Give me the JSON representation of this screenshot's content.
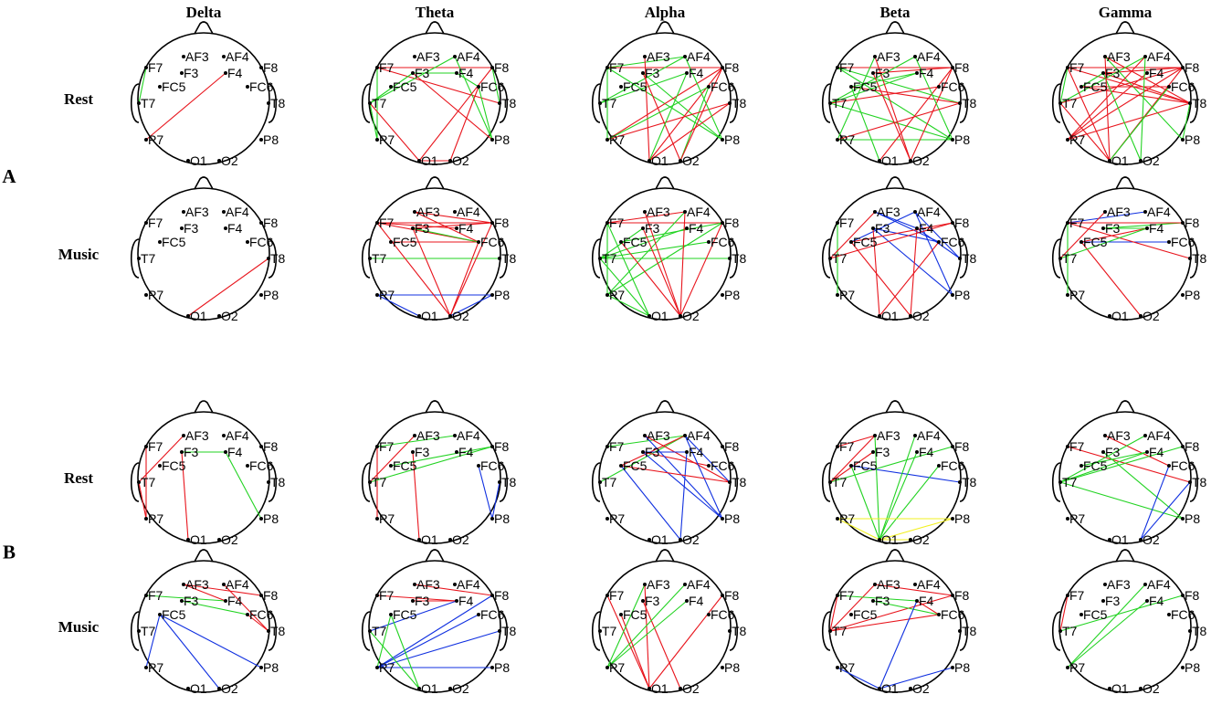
{
  "bands": [
    "Delta",
    "Theta",
    "Alpha",
    "Beta",
    "Gamma"
  ],
  "panels": [
    {
      "label": "A",
      "conditions": [
        "Rest",
        "Music"
      ]
    },
    {
      "label": "B",
      "conditions": [
        "Rest",
        "Music"
      ]
    }
  ],
  "electrodes": [
    "AF3",
    "AF4",
    "F7",
    "F3",
    "F4",
    "F8",
    "FC5",
    "FC6",
    "T7",
    "T8",
    "P7",
    "P8",
    "O1",
    "O2"
  ],
  "colors": {
    "red": "#e8141c",
    "green": "#22d322",
    "blue": "#1030e0",
    "yellow": "#f2f020",
    "outline": "#000000"
  },
  "connectivity": [
    [
      [
        [
          "F7",
          "T7",
          "g"
        ],
        [
          "F4",
          "P7",
          "r"
        ]
      ],
      [
        [
          "F7",
          "F8",
          "r"
        ],
        [
          "F3",
          "F4",
          "g"
        ],
        [
          "F7",
          "T8",
          "r"
        ],
        [
          "F7",
          "P7",
          "g"
        ],
        [
          "T7",
          "F3",
          "g"
        ],
        [
          "T7",
          "AF4",
          "g"
        ],
        [
          "T7",
          "P7",
          "g"
        ],
        [
          "F3",
          "P8",
          "r"
        ],
        [
          "AF4",
          "P8",
          "g"
        ],
        [
          "F8",
          "T8",
          "g"
        ],
        [
          "F8",
          "O1",
          "r"
        ],
        [
          "FC6",
          "O2",
          "r"
        ],
        [
          "O1",
          "O2",
          "r"
        ],
        [
          "T7",
          "O1",
          "r"
        ],
        [
          "F4",
          "FC6",
          "g"
        ],
        [
          "FC6",
          "P8",
          "g"
        ]
      ],
      [
        [
          "F7",
          "AF4",
          "g"
        ],
        [
          "F7",
          "F8",
          "r"
        ],
        [
          "F7",
          "P7",
          "g"
        ],
        [
          "F7",
          "P8",
          "g"
        ],
        [
          "T7",
          "F4",
          "g"
        ],
        [
          "T7",
          "AF4",
          "g"
        ],
        [
          "F3",
          "O2",
          "r"
        ],
        [
          "F3",
          "P8",
          "g"
        ],
        [
          "AF3",
          "O1",
          "r"
        ],
        [
          "F8",
          "P7",
          "r"
        ],
        [
          "F8",
          "O1",
          "r"
        ],
        [
          "FC6",
          "O2",
          "g"
        ],
        [
          "T8",
          "P7",
          "r"
        ],
        [
          "T8",
          "O1",
          "r"
        ],
        [
          "F8",
          "O2",
          "r"
        ],
        [
          "P7",
          "FC6",
          "g"
        ],
        [
          "AF4",
          "P8",
          "g"
        ],
        [
          "O1",
          "F4",
          "g"
        ]
      ],
      [
        [
          "F7",
          "F8",
          "r"
        ],
        [
          "F7",
          "T8",
          "g"
        ],
        [
          "F7",
          "P8",
          "g"
        ],
        [
          "F3",
          "F8",
          "r"
        ],
        [
          "FC5",
          "T8",
          "r"
        ],
        [
          "T7",
          "AF4",
          "g"
        ],
        [
          "T7",
          "F4",
          "g"
        ],
        [
          "T7",
          "P8",
          "g"
        ],
        [
          "P7",
          "P8",
          "g"
        ],
        [
          "P7",
          "AF3",
          "g"
        ],
        [
          "F3",
          "O2",
          "r"
        ],
        [
          "AF3",
          "O2",
          "r"
        ],
        [
          "FC5",
          "O1",
          "g"
        ],
        [
          "F8",
          "O1",
          "r"
        ],
        [
          "F8",
          "O2",
          "r"
        ],
        [
          "FC6",
          "T7",
          "r"
        ],
        [
          "AF4",
          "P8",
          "g"
        ],
        [
          "T8",
          "P7",
          "r"
        ],
        [
          "F4",
          "FC5",
          "g"
        ]
      ],
      [
        [
          "F7",
          "F8",
          "r"
        ],
        [
          "F7",
          "T8",
          "r"
        ],
        [
          "F3",
          "T8",
          "r"
        ],
        [
          "F3",
          "F8",
          "r"
        ],
        [
          "AF3",
          "T8",
          "r"
        ],
        [
          "AF3",
          "P8",
          "g"
        ],
        [
          "FC5",
          "T8",
          "r"
        ],
        [
          "FC5",
          "FC6",
          "r"
        ],
        [
          "T7",
          "AF4",
          "g"
        ],
        [
          "T7",
          "F8",
          "r"
        ],
        [
          "T7",
          "O1",
          "r"
        ],
        [
          "P7",
          "F8",
          "r"
        ],
        [
          "P7",
          "AF4",
          "r"
        ],
        [
          "P7",
          "T8",
          "r"
        ],
        [
          "F7",
          "O1",
          "r"
        ],
        [
          "F3",
          "O2",
          "g"
        ],
        [
          "AF3",
          "O1",
          "r"
        ],
        [
          "F8",
          "O1",
          "r"
        ],
        [
          "FC6",
          "O1",
          "g"
        ],
        [
          "T8",
          "P8",
          "g"
        ],
        [
          "F4",
          "P7",
          "r"
        ],
        [
          "AF4",
          "O2",
          "g"
        ],
        [
          "F7",
          "T7",
          "g"
        ],
        [
          "F3",
          "FC5",
          "g"
        ]
      ]
    ],
    [
      [
        [
          "O1",
          "T8",
          "r"
        ]
      ],
      [
        [
          "F7",
          "F8",
          "r"
        ],
        [
          "AF3",
          "FC6",
          "r"
        ],
        [
          "F3",
          "F8",
          "r"
        ],
        [
          "F7",
          "FC6",
          "r"
        ],
        [
          "AF3",
          "F8",
          "r"
        ],
        [
          "F7",
          "F4",
          "r"
        ],
        [
          "FC5",
          "FC6",
          "r"
        ],
        [
          "F3",
          "FC6",
          "g"
        ],
        [
          "T7",
          "T8",
          "g"
        ],
        [
          "F8",
          "O2",
          "r"
        ],
        [
          "FC6",
          "O2",
          "r"
        ],
        [
          "P7",
          "P8",
          "b"
        ],
        [
          "P7",
          "O1",
          "b"
        ],
        [
          "O2",
          "P8",
          "b"
        ],
        [
          "F3",
          "O2",
          "r"
        ],
        [
          "F7",
          "O2",
          "r"
        ]
      ],
      [
        [
          "F7",
          "F8",
          "r"
        ],
        [
          "F7",
          "AF4",
          "r"
        ],
        [
          "T7",
          "T8",
          "g"
        ],
        [
          "T7",
          "FC6",
          "g"
        ],
        [
          "FC5",
          "F8",
          "g"
        ],
        [
          "T7",
          "F4",
          "g"
        ],
        [
          "P7",
          "F8",
          "g"
        ],
        [
          "P7",
          "AF4",
          "g"
        ],
        [
          "F7",
          "O1",
          "g"
        ],
        [
          "T7",
          "O1",
          "g"
        ],
        [
          "P7",
          "O1",
          "g"
        ],
        [
          "F7",
          "P7",
          "g"
        ],
        [
          "F3",
          "O2",
          "r"
        ],
        [
          "AF3",
          "O2",
          "r"
        ],
        [
          "F8",
          "O2",
          "r"
        ],
        [
          "AF4",
          "O2",
          "r"
        ],
        [
          "FC5",
          "O2",
          "r"
        ],
        [
          "T7",
          "F3",
          "g"
        ]
      ],
      [
        [
          "F7",
          "P7",
          "g"
        ],
        [
          "T7",
          "AF3",
          "r"
        ],
        [
          "F3",
          "FC6",
          "b"
        ],
        [
          "AF3",
          "FC6",
          "b"
        ],
        [
          "FC5",
          "AF4",
          "b"
        ],
        [
          "F3",
          "P8",
          "b"
        ],
        [
          "AF4",
          "T8",
          "b"
        ],
        [
          "AF4",
          "P8",
          "b"
        ],
        [
          "F4",
          "T8",
          "b"
        ],
        [
          "FC5",
          "F8",
          "r"
        ],
        [
          "T7",
          "F8",
          "r"
        ],
        [
          "F3",
          "O1",
          "r"
        ],
        [
          "F4",
          "O2",
          "r"
        ],
        [
          "FC6",
          "O1",
          "r"
        ],
        [
          "FC5",
          "O2",
          "r"
        ],
        [
          "AF3",
          "F4",
          "b"
        ]
      ],
      [
        [
          "F7",
          "AF4",
          "b"
        ],
        [
          "F3",
          "F8",
          "g"
        ],
        [
          "F3",
          "F4",
          "g"
        ],
        [
          "F7",
          "F8",
          "r"
        ],
        [
          "FC5",
          "FC6",
          "b"
        ],
        [
          "FC5",
          "F4",
          "r"
        ],
        [
          "F7",
          "T8",
          "r"
        ],
        [
          "FC5",
          "O2",
          "r"
        ],
        [
          "T7",
          "F4",
          "g"
        ],
        [
          "F7",
          "P7",
          "g"
        ],
        [
          "T7",
          "AF3",
          "r"
        ]
      ]
    ],
    [
      [
        [
          "F3",
          "F4",
          "g"
        ],
        [
          "F3",
          "O1",
          "r"
        ],
        [
          "F4",
          "P8",
          "g"
        ],
        [
          "AF3",
          "T7",
          "r"
        ],
        [
          "T7",
          "P7",
          "r"
        ],
        [
          "F7",
          "P7",
          "r"
        ]
      ],
      [
        [
          "F7",
          "P7",
          "r"
        ],
        [
          "AF3",
          "T7",
          "r"
        ],
        [
          "F3",
          "O1",
          "r"
        ],
        [
          "F7",
          "AF4",
          "g"
        ],
        [
          "T7",
          "F8",
          "g"
        ],
        [
          "FC5",
          "F8",
          "g"
        ],
        [
          "FC6",
          "P8",
          "b"
        ],
        [
          "T8",
          "P8",
          "b"
        ]
      ],
      [
        [
          "F7",
          "AF4",
          "g"
        ],
        [
          "T7",
          "AF4",
          "g"
        ],
        [
          "F3",
          "FC6",
          "r"
        ],
        [
          "AF3",
          "T8",
          "r"
        ],
        [
          "FC5",
          "AF4",
          "r"
        ],
        [
          "F3",
          "P8",
          "b"
        ],
        [
          "AF3",
          "P8",
          "b"
        ],
        [
          "AF4",
          "P8",
          "b"
        ],
        [
          "FC5",
          "O2",
          "b"
        ],
        [
          "F4",
          "O2",
          "b"
        ],
        [
          "AF4",
          "T8",
          "b"
        ],
        [
          "F3",
          "F4",
          "b"
        ],
        [
          "FC5",
          "T8",
          "r"
        ]
      ],
      [
        [
          "F7",
          "AF3",
          "r"
        ],
        [
          "T7",
          "AF3",
          "r"
        ],
        [
          "T7",
          "F3",
          "r"
        ],
        [
          "T7",
          "F8",
          "g"
        ],
        [
          "FC5",
          "T8",
          "b"
        ],
        [
          "FC5",
          "O1",
          "g"
        ],
        [
          "AF3",
          "O1",
          "g"
        ],
        [
          "AF4",
          "O1",
          "g"
        ],
        [
          "F4",
          "O1",
          "g"
        ],
        [
          "FC6",
          "O1",
          "g"
        ],
        [
          "P7",
          "P8",
          "y"
        ],
        [
          "P7",
          "O1",
          "y"
        ],
        [
          "O1",
          "P8",
          "y"
        ],
        [
          "O1",
          "O2",
          "y"
        ]
      ],
      [
        [
          "F7",
          "T8",
          "r"
        ],
        [
          "AF3",
          "FC6",
          "r"
        ],
        [
          "T7",
          "AF4",
          "g"
        ],
        [
          "T7",
          "F4",
          "g"
        ],
        [
          "T7",
          "F8",
          "g"
        ],
        [
          "FC5",
          "F4",
          "g"
        ],
        [
          "T7",
          "P8",
          "g"
        ],
        [
          "F3",
          "P8",
          "g"
        ],
        [
          "FC6",
          "O2",
          "b"
        ],
        [
          "T8",
          "O2",
          "b"
        ]
      ]
    ],
    [
      [
        [
          "F3",
          "FC6",
          "g"
        ],
        [
          "F7",
          "F4",
          "g"
        ],
        [
          "AF3",
          "F8",
          "r"
        ],
        [
          "AF4",
          "T8",
          "r"
        ],
        [
          "FC6",
          "T8",
          "r"
        ],
        [
          "AF3",
          "F4",
          "r"
        ],
        [
          "FC5",
          "P8",
          "b"
        ],
        [
          "FC5",
          "O2",
          "b"
        ],
        [
          "FC5",
          "P7",
          "b"
        ]
      ],
      [
        [
          "F7",
          "F4",
          "r"
        ],
        [
          "F3",
          "F4",
          "r"
        ],
        [
          "AF3",
          "F8",
          "r"
        ],
        [
          "T7",
          "F4",
          "b"
        ],
        [
          "P7",
          "F8",
          "b"
        ],
        [
          "P7",
          "FC6",
          "b"
        ],
        [
          "P7",
          "T8",
          "b"
        ],
        [
          "P7",
          "P8",
          "b"
        ],
        [
          "FC5",
          "O1",
          "g"
        ],
        [
          "T7",
          "O1",
          "g"
        ],
        [
          "FC5",
          "P7",
          "g"
        ]
      ],
      [
        [
          "F7",
          "O1",
          "r"
        ],
        [
          "F3",
          "O2",
          "r"
        ],
        [
          "AF3",
          "O1",
          "r"
        ],
        [
          "P7",
          "AF4",
          "g"
        ],
        [
          "P7",
          "F4",
          "g"
        ],
        [
          "FC5",
          "O1",
          "r"
        ],
        [
          "F8",
          "O1",
          "r"
        ],
        [
          "P7",
          "AF3",
          "g"
        ]
      ],
      [
        [
          "T7",
          "AF3",
          "r"
        ],
        [
          "T7",
          "F7",
          "r"
        ],
        [
          "T7",
          "F8",
          "r"
        ],
        [
          "T7",
          "FC6",
          "r"
        ],
        [
          "F3",
          "FC6",
          "g"
        ],
        [
          "F7",
          "F4",
          "g"
        ],
        [
          "AF3",
          "F8",
          "r"
        ],
        [
          "F4",
          "O1",
          "b"
        ],
        [
          "P7",
          "O1",
          "b"
        ],
        [
          "O1",
          "P8",
          "b"
        ],
        [
          "F4",
          "FC6",
          "r"
        ]
      ],
      [
        [
          "F7",
          "T7",
          "r"
        ],
        [
          "P7",
          "AF4",
          "g"
        ],
        [
          "P7",
          "F4",
          "g"
        ],
        [
          "T7",
          "F8",
          "g"
        ]
      ]
    ]
  ]
}
